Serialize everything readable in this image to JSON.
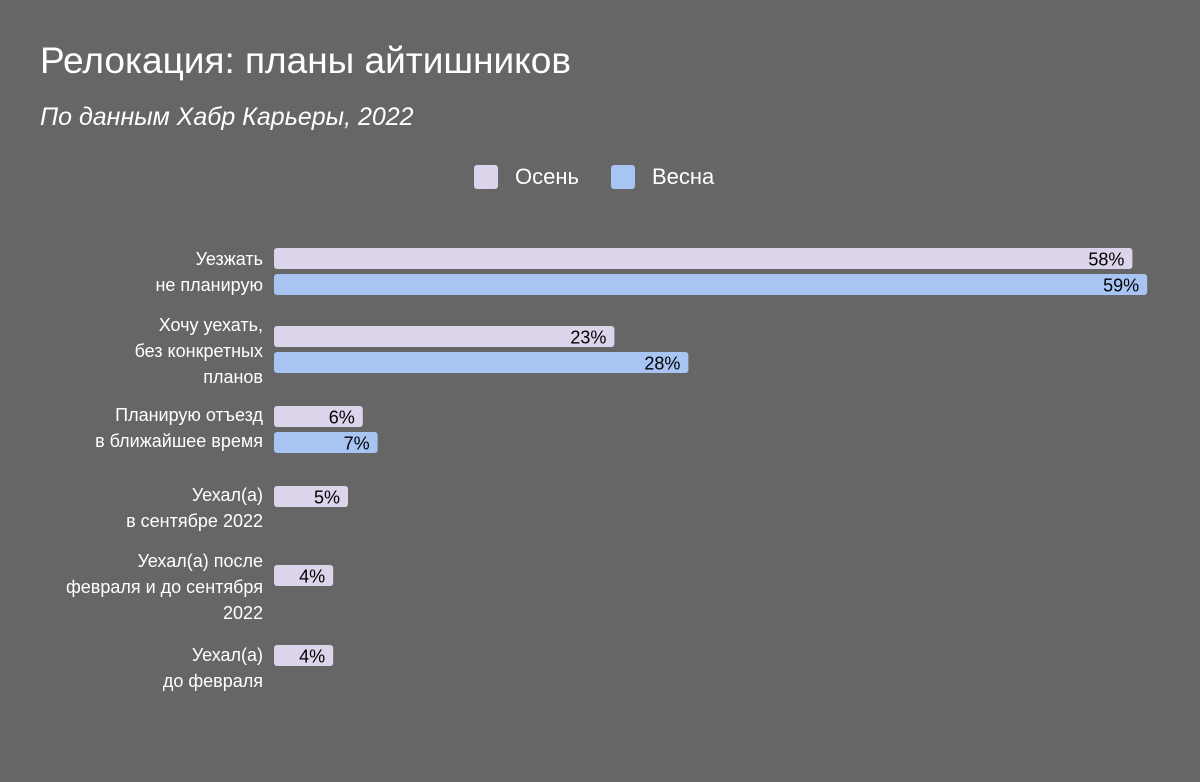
{
  "title": "Релокация: планы айтишников",
  "subtitle": "По данным Хабр Карьеры, 2022",
  "colors": {
    "background": "#666666",
    "autumn": "#dcd4ea",
    "spring": "#a8c4f2",
    "value_text": "#000000"
  },
  "chart_data": {
    "type": "bar",
    "orientation": "horizontal",
    "legend_position": "top-center",
    "grid": false,
    "xlim": [
      0,
      60
    ],
    "categories": [
      [
        "Уезжать",
        "не планирую"
      ],
      [
        "Хочу уехать,",
        "без конкретных",
        "планов"
      ],
      [
        "Планирую отъезд",
        "в ближайшее время"
      ],
      [
        "Уехал(а)",
        "в сентябре 2022"
      ],
      [
        "Уехал(а) после",
        "февраля и до сентября",
        "2022"
      ],
      [
        "Уехал(а)",
        "до февраля"
      ]
    ],
    "series": [
      {
        "name": "Осень",
        "values": [
          58,
          23,
          6,
          5,
          4,
          4
        ],
        "labels": [
          "58%",
          "23%",
          "6%",
          "5%",
          "4%",
          "4%"
        ]
      },
      {
        "name": "Весна",
        "values": [
          59,
          28,
          7,
          null,
          null,
          null
        ],
        "labels": [
          "59%",
          "28%",
          "7%",
          null,
          null,
          null
        ]
      }
    ]
  }
}
